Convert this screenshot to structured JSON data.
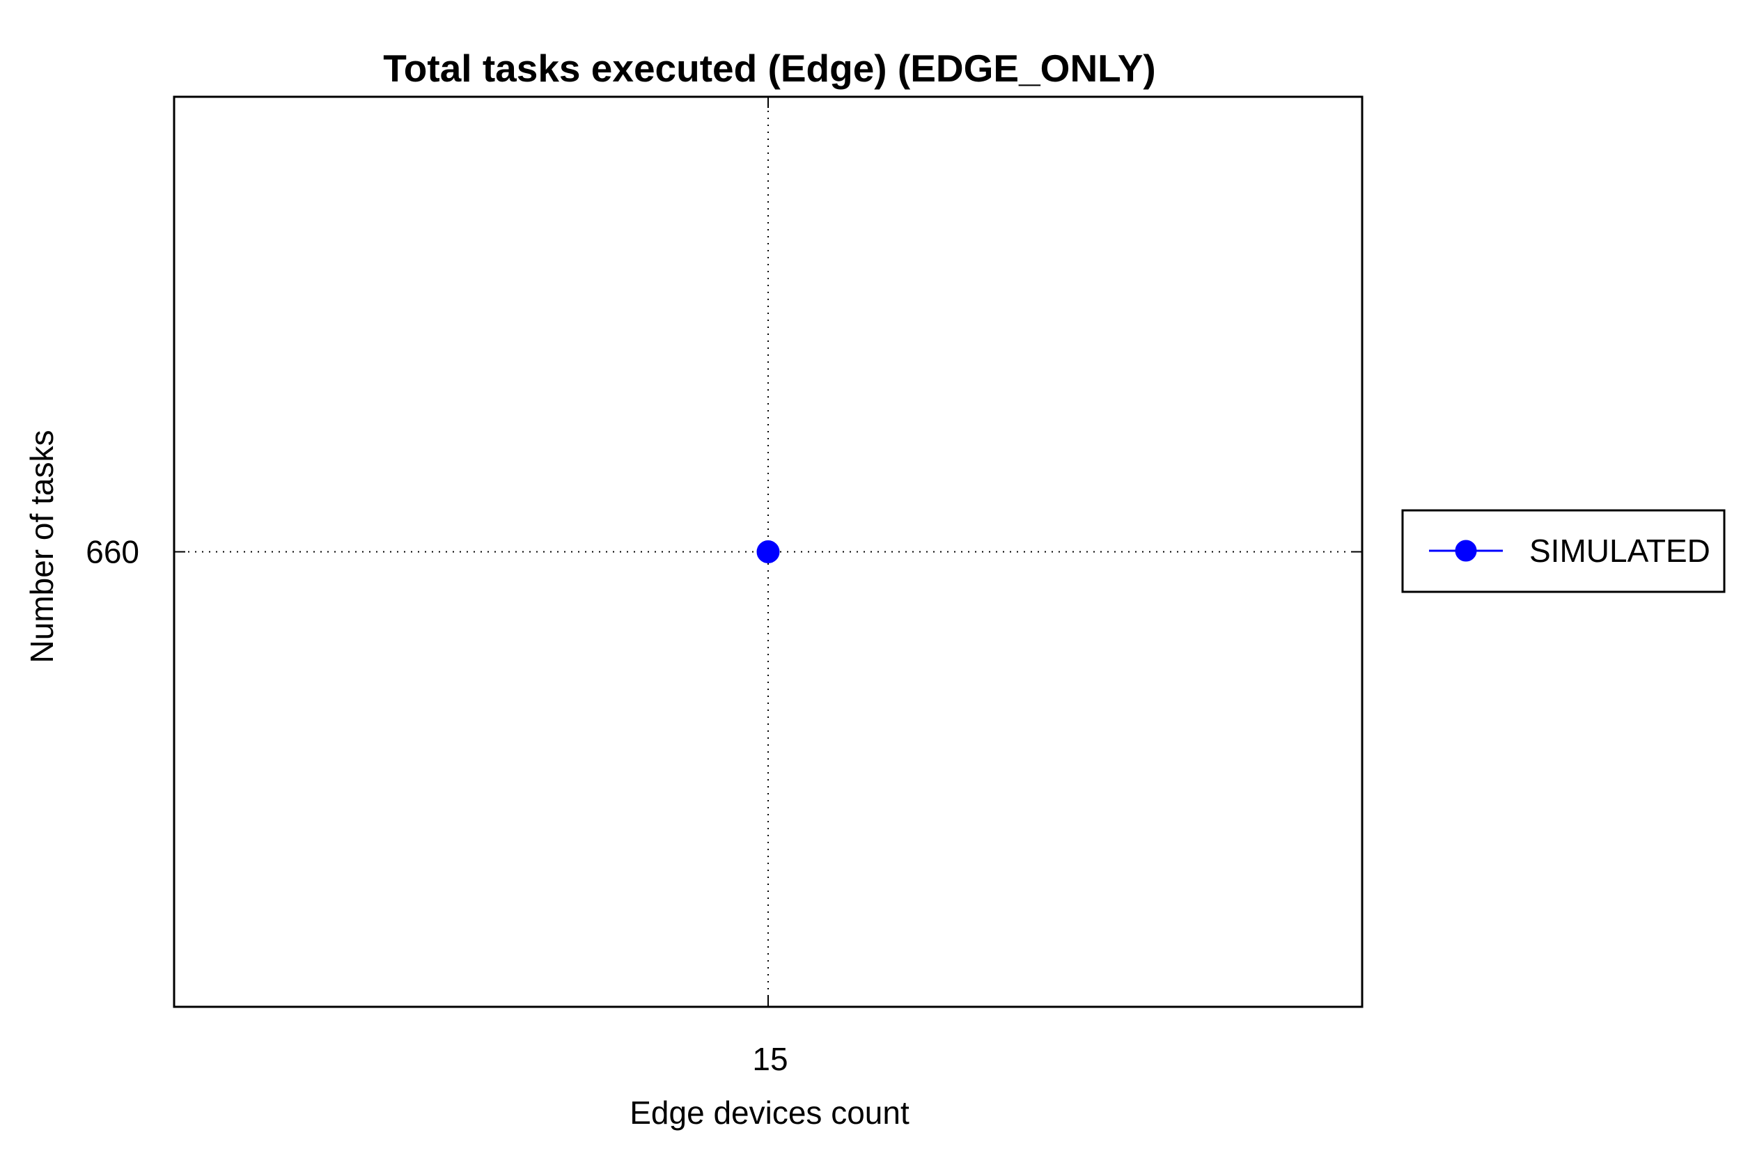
{
  "chart_data": {
    "type": "line",
    "title": "Total tasks executed (Edge) (EDGE_ONLY)",
    "xlabel": "Edge devices count",
    "ylabel": "Number of tasks",
    "x": [
      15
    ],
    "x_ticks": [
      "15"
    ],
    "y_ticks": [
      "660"
    ],
    "xlim": [
      14,
      16
    ],
    "ylim": [
      659,
      661
    ],
    "grid": true,
    "grid_style": "dotted",
    "legend_position": "outside-right",
    "series": [
      {
        "name": "SIMULATED",
        "color": "#0000ff",
        "marker": "circle",
        "values": [
          660
        ]
      }
    ]
  }
}
